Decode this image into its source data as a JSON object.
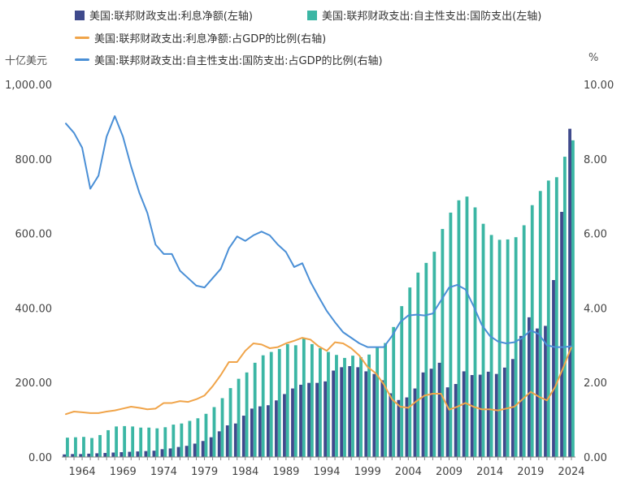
{
  "chart_data": {
    "type": "bar+line",
    "y_left_label": "十亿美元",
    "y_right_label": "%",
    "y_left_range": [
      0,
      1000
    ],
    "y_right_range": [
      0,
      10
    ],
    "y_left_ticks": [
      "0.00",
      "200.00",
      "400.00",
      "600.00",
      "800.00",
      "1,000.00"
    ],
    "y_right_ticks": [
      "0.00",
      "2.00",
      "4.00",
      "6.00",
      "8.00",
      "10.00"
    ],
    "x_tick_labels": [
      "1964",
      "1969",
      "1974",
      "1979",
      "1984",
      "1989",
      "1994",
      "1999",
      "2004",
      "2009",
      "2014",
      "2019",
      "2024"
    ],
    "years": [
      1962,
      1963,
      1964,
      1965,
      1966,
      1967,
      1968,
      1969,
      1970,
      1971,
      1972,
      1973,
      1974,
      1975,
      1976,
      1977,
      1978,
      1979,
      1980,
      1981,
      1982,
      1983,
      1984,
      1985,
      1986,
      1987,
      1988,
      1989,
      1990,
      1991,
      1992,
      1993,
      1994,
      1995,
      1996,
      1997,
      1998,
      1999,
      2000,
      2001,
      2002,
      2003,
      2004,
      2005,
      2006,
      2007,
      2008,
      2009,
      2010,
      2011,
      2012,
      2013,
      2014,
      2015,
      2016,
      2017,
      2018,
      2019,
      2020,
      2021,
      2022,
      2023,
      2024
    ],
    "series": [
      {
        "name": "美国:联邦财政支出:利息净额(左轴)",
        "type": "bar",
        "axis": "left",
        "color": "#3f4a8c",
        "values": [
          7,
          8,
          8,
          9,
          10,
          11,
          12,
          13,
          14,
          15,
          16,
          17,
          21,
          23,
          27,
          30,
          36,
          43,
          53,
          69,
          85,
          90,
          111,
          130,
          136,
          139,
          152,
          169,
          184,
          194,
          199,
          199,
          203,
          232,
          241,
          244,
          241,
          230,
          223,
          206,
          171,
          153,
          160,
          184,
          227,
          237,
          253,
          187,
          196,
          230,
          220,
          221,
          229,
          223,
          240,
          263,
          325,
          375,
          345,
          352,
          475,
          658,
          881
        ]
      },
      {
        "name": "美国:联邦财政支出:自主性支出:国防支出(左轴)",
        "type": "bar",
        "axis": "left",
        "color": "#3bb6a4",
        "values": [
          52,
          53,
          54,
          51,
          59,
          72,
          82,
          83,
          82,
          79,
          79,
          77,
          80,
          87,
          90,
          97,
          104,
          116,
          134,
          158,
          185,
          210,
          227,
          253,
          273,
          282,
          290,
          303,
          300,
          320,
          303,
          292,
          282,
          274,
          266,
          272,
          268,
          275,
          295,
          306,
          349,
          405,
          455,
          495,
          521,
          551,
          612,
          656,
          689,
          699,
          670,
          626,
          596,
          583,
          584,
          590,
          622,
          676,
          714,
          742,
          751,
          806,
          850
        ]
      },
      {
        "name": "美国:联邦财政支出:利息净额:占GDP的比例(右轴)",
        "type": "line",
        "axis": "right",
        "color": "#f0a449",
        "values": [
          1.15,
          1.22,
          1.2,
          1.18,
          1.18,
          1.22,
          1.25,
          1.3,
          1.35,
          1.32,
          1.28,
          1.3,
          1.45,
          1.45,
          1.5,
          1.48,
          1.55,
          1.65,
          1.9,
          2.2,
          2.55,
          2.55,
          2.85,
          3.05,
          3.02,
          2.92,
          2.95,
          3.05,
          3.12,
          3.2,
          3.15,
          2.97,
          2.85,
          3.08,
          3.05,
          2.92,
          2.72,
          2.42,
          2.25,
          1.95,
          1.55,
          1.35,
          1.32,
          1.5,
          1.65,
          1.7,
          1.7,
          1.27,
          1.35,
          1.45,
          1.35,
          1.28,
          1.28,
          1.25,
          1.3,
          1.35,
          1.55,
          1.75,
          1.62,
          1.52,
          1.88,
          2.4,
          2.95
        ]
      },
      {
        "name": "美国:联邦财政支出:自主性支出:国防支出:占GDP的比例(右轴)",
        "type": "line",
        "axis": "right",
        "color": "#4a8fd6",
        "values": [
          8.95,
          8.7,
          8.3,
          7.2,
          7.55,
          8.6,
          9.15,
          8.6,
          7.8,
          7.1,
          6.55,
          5.7,
          5.45,
          5.45,
          5.0,
          4.8,
          4.6,
          4.55,
          4.8,
          5.05,
          5.6,
          5.92,
          5.8,
          5.95,
          6.05,
          5.95,
          5.7,
          5.5,
          5.1,
          5.2,
          4.7,
          4.3,
          3.92,
          3.62,
          3.35,
          3.2,
          3.05,
          2.95,
          2.95,
          2.95,
          3.25,
          3.62,
          3.8,
          3.82,
          3.8,
          3.85,
          4.2,
          4.55,
          4.62,
          4.5,
          4.05,
          3.55,
          3.25,
          3.1,
          3.05,
          3.08,
          3.2,
          3.4,
          3.3,
          3.0,
          2.95,
          2.95,
          2.97
        ]
      }
    ]
  }
}
